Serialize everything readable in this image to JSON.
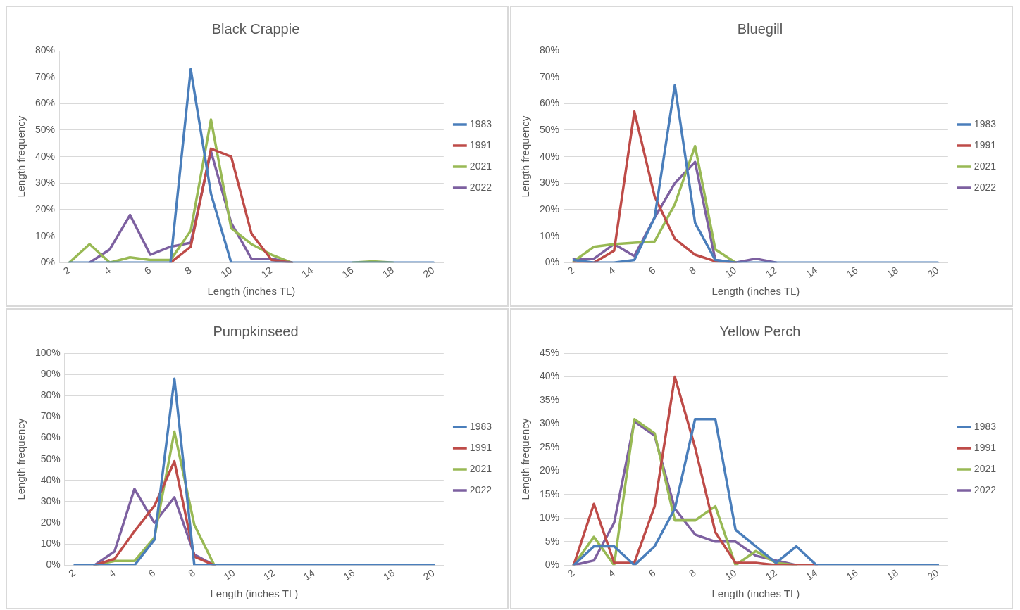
{
  "chart_data": [
    {
      "type": "line",
      "title": "Black Crappie",
      "xlabel": "Length (inches TL)",
      "ylabel": "Length frequency",
      "categories": [
        "2",
        null,
        "4",
        null,
        "6",
        null,
        "8",
        null,
        "10",
        null,
        "12",
        null,
        "14",
        null,
        "16",
        null,
        "18",
        null,
        "20"
      ],
      "series": [
        {
          "name": "1983",
          "color": "#4a7ebb",
          "values": [
            0,
            0,
            0,
            0,
            0,
            0,
            73,
            26,
            0,
            0,
            0,
            0,
            0,
            0,
            0,
            0,
            0,
            0,
            0
          ]
        },
        {
          "name": "1991",
          "color": "#be4b48",
          "values": [
            null,
            null,
            null,
            null,
            null,
            0,
            6,
            43,
            40,
            11,
            1,
            0,
            null,
            null,
            null,
            null,
            null,
            null,
            null
          ]
        },
        {
          "name": "2021",
          "color": "#98b954",
          "values": [
            0,
            7,
            0,
            2,
            1,
            1,
            12,
            54,
            13,
            7,
            3,
            0,
            null,
            null,
            0,
            0.5,
            0,
            null,
            null
          ]
        },
        {
          "name": "2022",
          "color": "#7d60a0",
          "values": [
            null,
            0,
            5,
            18,
            3,
            6,
            7.5,
            42,
            15,
            1.5,
            1.5,
            0,
            null,
            null,
            null,
            null,
            null,
            null,
            null
          ]
        }
      ],
      "ylim": [
        0,
        80
      ],
      "yticks": [
        {
          "value": 0,
          "label": "0%"
        },
        {
          "value": 10,
          "label": "10%"
        },
        {
          "value": 20,
          "label": "20%"
        },
        {
          "value": 30,
          "label": "30%"
        },
        {
          "value": 40,
          "label": "40%"
        },
        {
          "value": 50,
          "label": "50%"
        },
        {
          "value": 60,
          "label": "60%"
        },
        {
          "value": 70,
          "label": "70%"
        },
        {
          "value": 80,
          "label": "80%"
        }
      ],
      "grid": "y",
      "legend": "right",
      "marker": "none",
      "line_style": "solid"
    },
    {
      "type": "line",
      "title": "Bluegill",
      "xlabel": "Length (inches TL)",
      "ylabel": "Length frequency",
      "categories": [
        "2",
        null,
        "4",
        null,
        "6",
        null,
        "8",
        null,
        "10",
        null,
        "12",
        null,
        "14",
        null,
        "16",
        null,
        "18",
        null,
        "20"
      ],
      "series": [
        {
          "name": "1983",
          "color": "#4a7ebb",
          "values": [
            1,
            0,
            0,
            1,
            17,
            67,
            15,
            1,
            0,
            0,
            0,
            0,
            0,
            0,
            0,
            0,
            0,
            0,
            0
          ]
        },
        {
          "name": "1991",
          "color": "#be4b48",
          "values": [
            0,
            0,
            4.5,
            57,
            25,
            9,
            3,
            0.5,
            0,
            null,
            null,
            null,
            null,
            null,
            null,
            null,
            null,
            null,
            null
          ]
        },
        {
          "name": "2021",
          "color": "#98b954",
          "values": [
            0.5,
            6,
            7,
            7.5,
            8,
            22,
            44,
            5,
            0,
            null,
            null,
            null,
            null,
            null,
            null,
            null,
            null,
            null,
            null
          ]
        },
        {
          "name": "2022",
          "color": "#7d60a0",
          "values": [
            1.5,
            1.5,
            7,
            2.5,
            17,
            30,
            38,
            1,
            0,
            1.5,
            0,
            null,
            null,
            null,
            null,
            null,
            null,
            null,
            null
          ]
        }
      ],
      "ylim": [
        0,
        80
      ],
      "yticks": [
        {
          "value": 0,
          "label": "0%"
        },
        {
          "value": 10,
          "label": "10%"
        },
        {
          "value": 20,
          "label": "20%"
        },
        {
          "value": 30,
          "label": "30%"
        },
        {
          "value": 40,
          "label": "40%"
        },
        {
          "value": 50,
          "label": "50%"
        },
        {
          "value": 60,
          "label": "60%"
        },
        {
          "value": 70,
          "label": "70%"
        },
        {
          "value": 80,
          "label": "80%"
        }
      ],
      "grid": "y",
      "legend": "right",
      "marker": "none",
      "line_style": "solid"
    },
    {
      "type": "line",
      "title": "Pumpkinseed",
      "xlabel": "Length (inches TL)",
      "ylabel": "Length frequency",
      "categories": [
        "2",
        null,
        "4",
        null,
        "6",
        null,
        "8",
        null,
        "10",
        null,
        "12",
        null,
        "14",
        null,
        "16",
        null,
        "18",
        null,
        "20"
      ],
      "series": [
        {
          "name": "1983",
          "color": "#4a7ebb",
          "values": [
            0,
            0,
            0,
            0,
            12,
            88,
            0,
            0,
            0,
            0,
            0,
            0,
            0,
            0,
            0,
            0,
            0,
            0,
            0
          ]
        },
        {
          "name": "1991",
          "color": "#be4b48",
          "values": [
            null,
            0,
            3,
            16,
            28,
            49,
            4,
            0,
            null,
            null,
            null,
            null,
            null,
            null,
            null,
            null,
            null,
            null,
            null
          ]
        },
        {
          "name": "2021",
          "color": "#98b954",
          "values": [
            null,
            0,
            2,
            2,
            13,
            63,
            19,
            0,
            null,
            null,
            null,
            null,
            null,
            null,
            null,
            null,
            null,
            null,
            null
          ]
        },
        {
          "name": "2022",
          "color": "#7d60a0",
          "values": [
            null,
            0,
            6.5,
            36,
            20,
            32,
            5,
            0,
            null,
            null,
            null,
            null,
            null,
            null,
            null,
            null,
            null,
            null,
            null
          ]
        }
      ],
      "ylim": [
        0,
        100
      ],
      "yticks": [
        {
          "value": 0,
          "label": "0%"
        },
        {
          "value": 10,
          "label": "10%"
        },
        {
          "value": 20,
          "label": "20%"
        },
        {
          "value": 30,
          "label": "30%"
        },
        {
          "value": 40,
          "label": "40%"
        },
        {
          "value": 50,
          "label": "50%"
        },
        {
          "value": 60,
          "label": "60%"
        },
        {
          "value": 70,
          "label": "70%"
        },
        {
          "value": 80,
          "label": "80%"
        },
        {
          "value": 90,
          "label": "90%"
        },
        {
          "value": 100,
          "label": "100%"
        }
      ],
      "grid": "y",
      "legend": "right",
      "marker": "none",
      "line_style": "solid"
    },
    {
      "type": "line",
      "title": "Yellow Perch",
      "xlabel": "Length (inches TL)",
      "ylabel": "Length frequency",
      "categories": [
        "2",
        null,
        "4",
        null,
        "6",
        null,
        "8",
        null,
        "10",
        null,
        "12",
        null,
        "14",
        null,
        "16",
        null,
        "18",
        null,
        "20"
      ],
      "series": [
        {
          "name": "1983",
          "color": "#4a7ebb",
          "values": [
            0,
            4,
            4,
            0,
            4,
            12,
            31,
            31,
            7.5,
            4,
            0.5,
            4,
            0,
            0,
            0,
            0,
            0,
            0,
            0
          ]
        },
        {
          "name": "1991",
          "color": "#be4b48",
          "values": [
            0,
            13,
            0.5,
            0.5,
            12.5,
            40,
            25,
            7,
            0.5,
            0.5,
            0,
            0,
            0,
            null,
            null,
            null,
            null,
            null,
            null
          ]
        },
        {
          "name": "2021",
          "color": "#98b954",
          "values": [
            0,
            6,
            0,
            31,
            28,
            9.5,
            9.5,
            12.5,
            0,
            3,
            0.5,
            0,
            null,
            null,
            null,
            null,
            null,
            null,
            null
          ]
        },
        {
          "name": "2022",
          "color": "#7d60a0",
          "values": [
            0,
            1,
            9,
            30.5,
            27.5,
            12,
            6.5,
            5,
            5,
            2,
            1,
            0,
            null,
            null,
            null,
            null,
            null,
            null,
            null
          ]
        }
      ],
      "ylim": [
        0,
        45
      ],
      "yticks": [
        {
          "value": 0,
          "label": "0%"
        },
        {
          "value": 5,
          "label": "5%"
        },
        {
          "value": 10,
          "label": "10%"
        },
        {
          "value": 15,
          "label": "15%"
        },
        {
          "value": 20,
          "label": "20%"
        },
        {
          "value": 25,
          "label": "25%"
        },
        {
          "value": 30,
          "label": "30%"
        },
        {
          "value": 35,
          "label": "35%"
        },
        {
          "value": 40,
          "label": "40%"
        },
        {
          "value": 45,
          "label": "45%"
        }
      ],
      "grid": "y",
      "legend": "right",
      "marker": "none",
      "line_style": "solid"
    }
  ]
}
